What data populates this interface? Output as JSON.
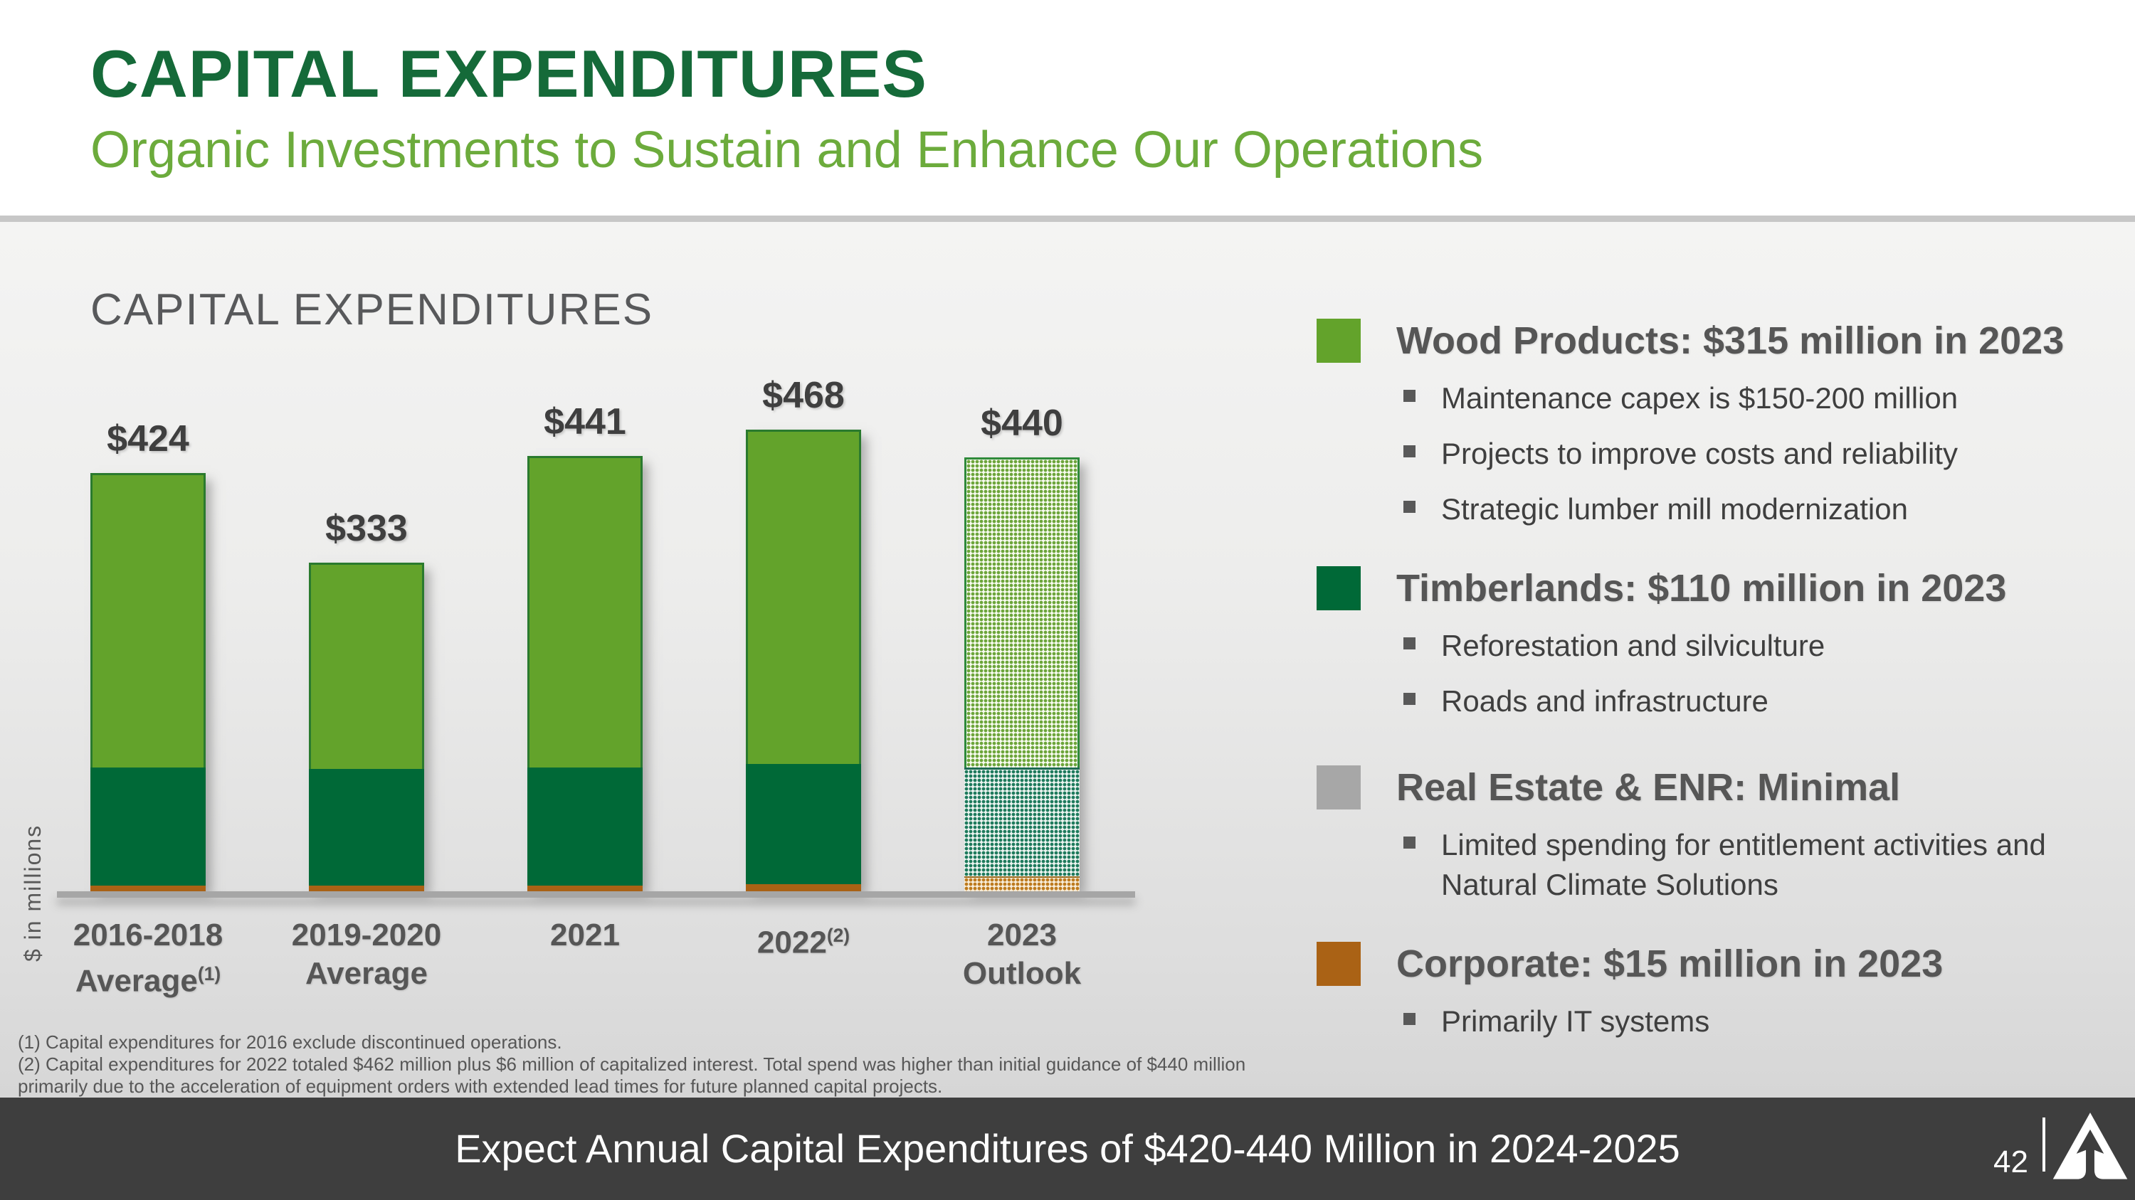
{
  "header": {
    "title": "CAPITAL EXPENDITURES",
    "subtitle": "Organic Investments to Sustain and Enhance Our Operations"
  },
  "chart": {
    "title": "CAPITAL EXPENDITURES",
    "y_axis_label": "$ in millions"
  },
  "chart_data": {
    "type": "bar",
    "stacked": true,
    "title": "CAPITAL EXPENDITURES",
    "ylabel": "$ in millions",
    "grid": false,
    "legend_position": "right",
    "categories": [
      "2016-2018 Average(1)",
      "2019-2020 Average",
      "2021",
      "2022(2)",
      "2023 Outlook"
    ],
    "category_labels": [
      {
        "lines": [
          [
            {
              "t": "2016-2018"
            }
          ],
          [
            {
              "t": "Average"
            },
            {
              "t": "(1)",
              "sup": true
            }
          ]
        ]
      },
      {
        "lines": [
          [
            {
              "t": "2019-2020"
            }
          ],
          [
            {
              "t": "Average"
            }
          ]
        ]
      },
      {
        "lines": [
          [
            {
              "t": "2021"
            }
          ]
        ]
      },
      {
        "lines": [
          [
            {
              "t": "2022"
            },
            {
              "t": "(2)",
              "sup": true
            }
          ]
        ]
      },
      {
        "lines": [
          [
            {
              "t": "2023"
            }
          ],
          [
            {
              "t": "Outlook"
            }
          ]
        ]
      }
    ],
    "totals": [
      424,
      333,
      441,
      468,
      440
    ],
    "total_labels": [
      "$424",
      "$333",
      "$441",
      "$468",
      "$440"
    ],
    "series": [
      {
        "name": "Corporate",
        "color": "#AA6215",
        "values": [
          6,
          6,
          6,
          7,
          15
        ]
      },
      {
        "name": "Timberlands",
        "color": "#006937",
        "values": [
          120,
          118,
          120,
          122,
          110
        ]
      },
      {
        "name": "Wood Products",
        "color": "#63A32B",
        "values": [
          298,
          209,
          315,
          339,
          315
        ]
      }
    ],
    "outlook_index": 4
  },
  "legend": {
    "items": [
      {
        "name": "Wood Products",
        "swatch_color": "#63A32B",
        "header": "Wood Products: $315 million in 2023",
        "bullets": [
          "Maintenance capex is $150-200 million",
          "Projects to improve costs and reliability",
          "Strategic lumber mill modernization"
        ]
      },
      {
        "name": "Timberlands",
        "swatch_color": "#006937",
        "header": "Timberlands: $110 million in 2023",
        "bullets": [
          "Reforestation and silviculture",
          "Roads and infrastructure"
        ]
      },
      {
        "name": "Real Estate & ENR",
        "swatch_color": "#A7A7A7",
        "header": "Real Estate & ENR: Minimal",
        "bullets": [
          "Limited spending for entitlement activities and Natural Climate Solutions"
        ]
      },
      {
        "name": "Corporate",
        "swatch_color": "#AA6215",
        "header": "Corporate: $15 million in 2023",
        "bullets": [
          "Primarily IT systems"
        ]
      }
    ]
  },
  "footnotes": [
    "(1) Capital expenditures for 2016 exclude discontinued operations.",
    "(2) Capital expenditures for 2022 totaled $462 million plus $6 million of capitalized interest. Total spend was higher than initial guidance of $440 million",
    "primarily due to the acceleration of equipment orders with extended lead times for future planned capital projects."
  ],
  "footer": {
    "banner_text": "Expect Annual Capital Expenditures of $420-440 Million in 2024-2025",
    "page_number": "42"
  }
}
